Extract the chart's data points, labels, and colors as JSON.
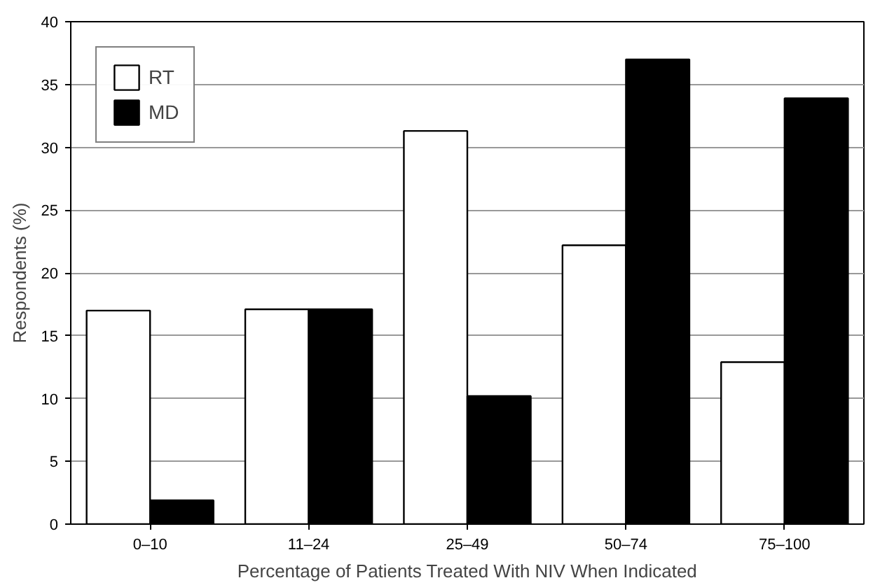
{
  "chart_data": {
    "type": "bar",
    "xlabel": "Percentage of Patients Treated With NIV When Indicated",
    "ylabel": "Respondents (%)",
    "categories": [
      "0–10",
      "11–24",
      "25–49",
      "50–74",
      "75–100"
    ],
    "series": [
      {
        "name": "RT",
        "color": "#ffffff",
        "values": [
          17.0,
          17.1,
          31.3,
          22.2,
          12.9
        ]
      },
      {
        "name": "MD",
        "color": "#000000",
        "values": [
          1.9,
          17.1,
          10.2,
          37.0,
          33.9
        ]
      }
    ],
    "ylim": [
      0,
      40
    ],
    "yticks": [
      0,
      5,
      10,
      15,
      20,
      25,
      30,
      35,
      40
    ],
    "grid": "y",
    "legend": "top left"
  }
}
